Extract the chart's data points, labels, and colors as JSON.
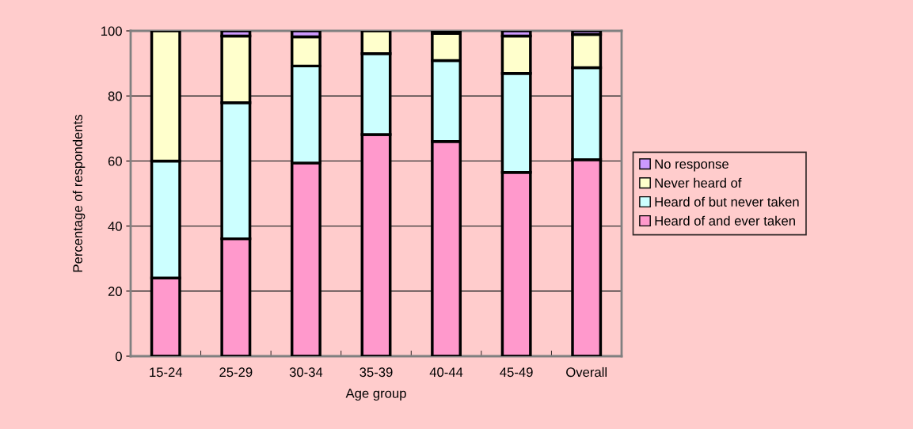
{
  "chart_data": {
    "type": "bar",
    "stacked": true,
    "xlabel": "Age group",
    "ylabel": "Percentage of respondents",
    "categories": [
      "15-24",
      "25-29",
      "30-34",
      "35-39",
      "40-44",
      "45-49",
      "Overall"
    ],
    "series": [
      {
        "name": "Heard of and ever taken",
        "color": "#ff99cc",
        "values": [
          24,
          36.1,
          59.4,
          68.1,
          66,
          56.5,
          60.4
        ]
      },
      {
        "name": "Heard of but never taken",
        "color": "#ccffff",
        "values": [
          36,
          41.8,
          29.8,
          24.9,
          24.9,
          30.4,
          28.3
        ]
      },
      {
        "name": "Never heard of",
        "color": "#ffffcc",
        "values": [
          40,
          20.5,
          9,
          7,
          8.3,
          11.5,
          10.2
        ]
      },
      {
        "name": "No response",
        "color": "#cc99ff",
        "values": [
          null,
          1.6,
          1.8,
          null,
          0.8,
          1.6,
          1.1
        ]
      }
    ],
    "ylim": [
      0,
      100
    ],
    "yticks": [
      0,
      20,
      40,
      60,
      80,
      100
    ],
    "grid": "y",
    "legend": "right"
  }
}
